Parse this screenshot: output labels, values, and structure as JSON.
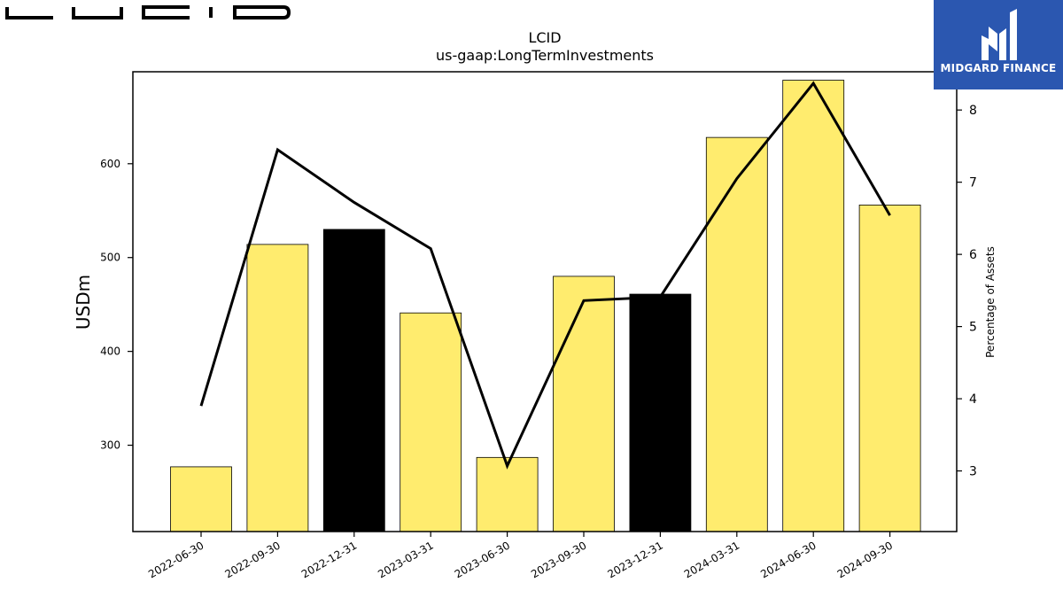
{
  "brand": {
    "logo_text": "LUCID"
  },
  "badge": {
    "name": "MIDGARD FINANCE",
    "bg_color": "#2b57b0"
  },
  "chart_data": {
    "type": "bar",
    "title": "LCID",
    "subtitle": "us-gaap:LongTermInvestments",
    "ylabel": "USDm",
    "y2label": "Percentage of Assets",
    "categories": [
      "2022-06-30",
      "2022-09-30",
      "2022-12-31",
      "2023-03-31",
      "2023-06-30",
      "2023-09-30",
      "2023-12-31",
      "2024-03-31",
      "2024-06-30",
      "2024-09-30"
    ],
    "series": [
      {
        "type": "bar",
        "axis": "left",
        "values": [
          277,
          514,
          530,
          441,
          287,
          480,
          461,
          628,
          689,
          556
        ],
        "colors": [
          "#ffec6e",
          "#ffec6e",
          "#000000",
          "#ffec6e",
          "#ffec6e",
          "#ffec6e",
          "#000000",
          "#ffec6e",
          "#ffec6e",
          "#ffec6e"
        ]
      },
      {
        "type": "line",
        "axis": "right",
        "values": [
          3.9,
          7.45,
          6.72,
          6.08,
          3.07,
          5.36,
          5.41,
          7.05,
          8.37,
          6.54
        ],
        "color": "#000000"
      }
    ],
    "ylim": [
      208,
      698
    ],
    "y2lim": [
      2.16,
      8.53
    ],
    "yticks": [
      300,
      400,
      500,
      600
    ],
    "y2ticks": [
      3,
      4,
      5,
      6,
      7,
      8
    ],
    "grid": false,
    "legend": "none"
  }
}
